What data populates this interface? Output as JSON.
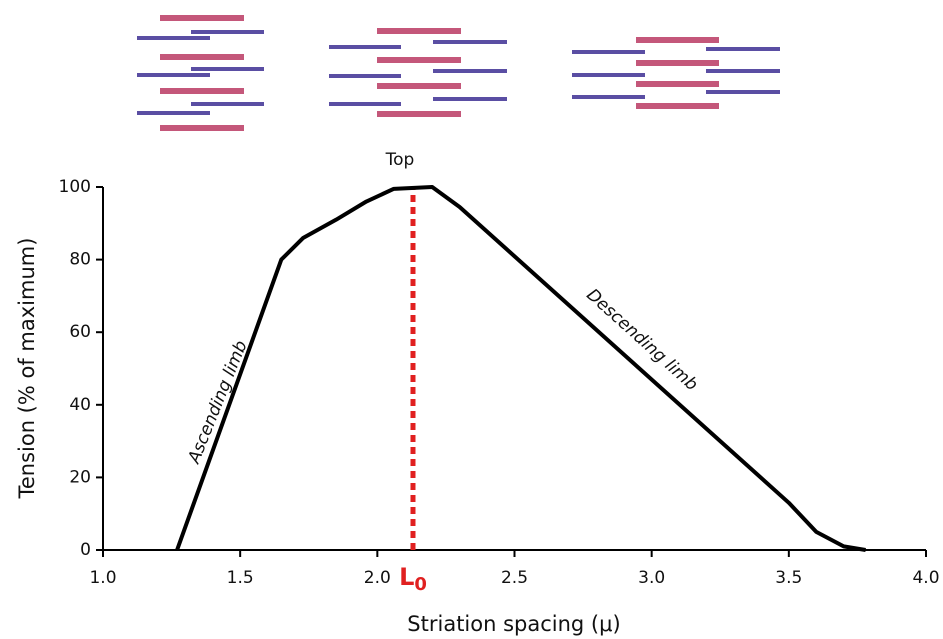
{
  "chart_data": {
    "type": "line",
    "x_label": "Striation spacing (μ)",
    "y_label": "Tension (% of maximum)",
    "x": [
      1.27,
      1.65,
      1.73,
      1.85,
      1.96,
      2.06,
      2.2,
      2.3,
      3.5,
      3.6,
      3.7,
      3.78
    ],
    "values": [
      0,
      80,
      86,
      91,
      96,
      99.5,
      100,
      94.5,
      13,
      5,
      1,
      0
    ],
    "color": "#000000",
    "xlim": [
      1.0,
      4.0
    ],
    "xticks": [
      {
        "value": 1.0,
        "label": "1.0"
      },
      1.5,
      {
        "value": 2.0,
        "label": "2.0"
      },
      2.5,
      {
        "value": 3.0,
        "label": "3.0"
      },
      3.5,
      {
        "value": 4.0,
        "label": "4.0"
      }
    ],
    "ylim": [
      0,
      100
    ],
    "yticks": [
      0,
      20,
      40,
      60,
      80,
      100
    ],
    "reference_x": 2.13,
    "reference_color": "#e02020",
    "reference_label": "L",
    "reference_subscript": "0",
    "annotations": [
      "Top",
      "Ascending limb",
      "Descending limb"
    ]
  }
}
